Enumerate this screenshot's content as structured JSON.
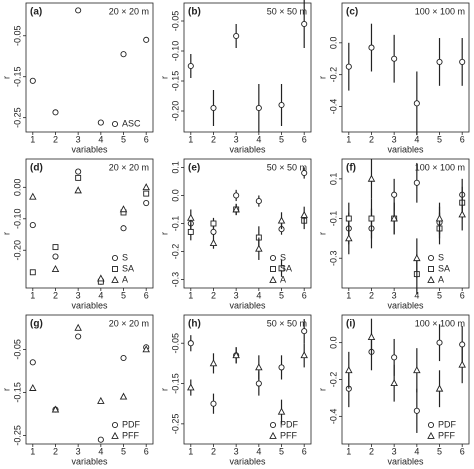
{
  "chart_data": [
    {
      "type": "scatter",
      "panel": "(a)",
      "scale": "20 × 20 m",
      "xlabel": "variables",
      "ylabel": "r",
      "xlim": [
        0.7,
        6.3
      ],
      "xticks": [
        1,
        2,
        3,
        4,
        5,
        6
      ],
      "ylim": [
        -0.285,
        0.03
      ],
      "yticks": [
        -0.05,
        -0.15,
        -0.25
      ],
      "series": [
        {
          "name": "ASC",
          "marker": "circle",
          "color": "#222",
          "x": [
            1,
            2,
            3,
            4,
            5,
            6
          ],
          "values": [
            -0.16,
            -0.237,
            0.012,
            -0.262,
            -0.095,
            -0.06
          ],
          "errors": [
            0.006,
            0.006,
            0.006,
            0.006,
            0.006,
            0.006
          ]
        }
      ]
    },
    {
      "type": "scatter",
      "panel": "(b)",
      "scale": "50 × 50 m",
      "xlabel": "variables",
      "ylabel": "r",
      "xlim": [
        0.7,
        6.3
      ],
      "xticks": [
        1,
        2,
        3,
        4,
        5,
        6
      ],
      "ylim": [
        -0.235,
        -0.02
      ],
      "yticks": [
        -0.05,
        {
          "value": -0.1,
          "label": "-0.10"
        },
        -0.15,
        {
          "value": -0.2,
          "label": "-0.20"
        }
      ],
      "series": [
        {
          "marker": "circle",
          "color": "#222",
          "x": [
            1,
            2,
            3,
            4,
            5,
            6
          ],
          "values": [
            -0.125,
            -0.195,
            -0.075,
            -0.195,
            -0.19,
            -0.055
          ],
          "errors": [
            0.02,
            0.03,
            0.02,
            0.04,
            0.035,
            0.04
          ]
        }
      ]
    },
    {
      "type": "scatter",
      "panel": "(c)",
      "scale": "100 × 100 m",
      "xlabel": "variables",
      "ylabel": "r",
      "xlim": [
        0.7,
        6.3
      ],
      "xticks": [
        1,
        2,
        3,
        4,
        5,
        6
      ],
      "ylim": [
        -0.56,
        0.25
      ],
      "yticks": [
        {
          "value": 0,
          "label": "0.0"
        },
        -0.2,
        -0.4
      ],
      "series": [
        {
          "marker": "circle",
          "color": "#222",
          "x": [
            1,
            2,
            3,
            4,
            5,
            6
          ],
          "values": [
            -0.15,
            -0.03,
            -0.1,
            -0.38,
            -0.12,
            -0.12
          ],
          "errors": [
            0.15,
            0.15,
            0.15,
            0.2,
            0.15,
            0.15
          ]
        }
      ]
    },
    {
      "type": "scatter",
      "panel": "(d)",
      "scale": "20 × 20 m",
      "xlabel": "variables",
      "ylabel": "r",
      "xlim": [
        0.7,
        6.3
      ],
      "xticks": [
        1,
        2,
        3,
        4,
        5,
        6
      ],
      "ylim": [
        -0.32,
        0.09
      ],
      "yticks": [
        {
          "value": 0,
          "label": "0.00"
        },
        {
          "value": -0.1,
          "label": "-0.10"
        },
        {
          "value": -0.2,
          "label": "-0.20"
        }
      ],
      "series": [
        {
          "name": "S",
          "marker": "circle",
          "color": "#222",
          "x": [
            1,
            2,
            3,
            4,
            5,
            6
          ],
          "values": [
            -0.12,
            -0.22,
            0.05,
            -0.3,
            -0.13,
            -0.05
          ],
          "errors": [
            0.005,
            0.005,
            0.005,
            0.005,
            0.005,
            0.005
          ]
        },
        {
          "name": "SA",
          "marker": "square",
          "color": "#222",
          "x": [
            1,
            2,
            3,
            4,
            5,
            6
          ],
          "values": [
            -0.27,
            -0.19,
            0.03,
            -0.3,
            -0.08,
            -0.02
          ],
          "errors": [
            0.005,
            0.005,
            0.005,
            0.005,
            0.005,
            0.005
          ]
        },
        {
          "name": "A",
          "marker": "triangle",
          "color": "#222",
          "x": [
            1,
            2,
            3,
            4,
            5,
            6
          ],
          "values": [
            -0.03,
            -0.26,
            -0.01,
            -0.29,
            -0.07,
            0.0
          ],
          "errors": [
            0.005,
            0.005,
            0.005,
            0.005,
            0.005,
            0.005
          ]
        }
      ]
    },
    {
      "type": "scatter",
      "panel": "(e)",
      "scale": "50 × 50 m",
      "xlabel": "variables",
      "ylabel": "r",
      "xlim": [
        0.7,
        6.3
      ],
      "xticks": [
        1,
        2,
        3,
        4,
        5,
        6
      ],
      "ylim": [
        -0.33,
        0.13
      ],
      "yticks": [
        0.1,
        {
          "value": 0,
          "label": "0.0"
        },
        -0.1,
        -0.2,
        -0.3
      ],
      "series": [
        {
          "name": "S",
          "marker": "circle",
          "color": "#222",
          "x": [
            1,
            2,
            3,
            4,
            5,
            6
          ],
          "values": [
            -0.1,
            -0.13,
            0.0,
            -0.02,
            -0.12,
            0.08
          ],
          "errors": [
            0.02,
            0.02,
            0.02,
            0.02,
            0.02,
            0.02
          ]
        },
        {
          "name": "SA",
          "marker": "square",
          "color": "#222",
          "x": [
            1,
            2,
            3,
            4,
            5,
            6
          ],
          "values": [
            -0.13,
            -0.1,
            -0.05,
            -0.15,
            -0.26,
            -0.09
          ],
          "errors": [
            0.03,
            0.02,
            0.02,
            0.04,
            0.03,
            0.03
          ]
        },
        {
          "name": "A",
          "marker": "triangle",
          "color": "#222",
          "x": [
            1,
            2,
            3,
            4,
            5,
            6
          ],
          "values": [
            -0.08,
            -0.17,
            -0.05,
            -0.19,
            -0.09,
            -0.07
          ],
          "errors": [
            0.03,
            0.02,
            0.02,
            0.04,
            0.03,
            0.03
          ]
        }
      ]
    },
    {
      "type": "scatter",
      "panel": "(f)",
      "scale": "100 × 100 m",
      "xlabel": "variables",
      "ylabel": "r",
      "xlim": [
        0.7,
        6.3
      ],
      "xticks": [
        1,
        2,
        3,
        4,
        5,
        6
      ],
      "ylim": [
        -0.45,
        0.2
      ],
      "yticks": [
        0.1,
        -0.1,
        -0.3
      ],
      "series": [
        {
          "name": "S",
          "marker": "circle",
          "color": "#222",
          "x": [
            1,
            2,
            3,
            4,
            5,
            6
          ],
          "values": [
            -0.15,
            -0.15,
            0.02,
            0.08,
            -0.12,
            0.02
          ],
          "errors": [
            0.08,
            0.1,
            0.08,
            0.1,
            0.08,
            0.08
          ]
        },
        {
          "name": "SA",
          "marker": "square",
          "color": "#222",
          "x": [
            1,
            2,
            3,
            4,
            5,
            6
          ],
          "values": [
            -0.1,
            -0.1,
            -0.1,
            -0.38,
            -0.15,
            -0.02
          ],
          "errors": [
            0.08,
            0.1,
            0.08,
            0.1,
            0.08,
            0.08
          ]
        },
        {
          "name": "A",
          "marker": "triangle",
          "color": "#222",
          "x": [
            1,
            2,
            3,
            4,
            5,
            6
          ],
          "values": [
            -0.2,
            0.1,
            -0.1,
            -0.3,
            -0.1,
            -0.08
          ],
          "errors": [
            0.08,
            0.1,
            0.08,
            0.1,
            0.08,
            0.08
          ]
        }
      ]
    },
    {
      "type": "scatter",
      "panel": "(g)",
      "scale": "20 × 20 m",
      "xlabel": "variables",
      "ylabel": "r",
      "xlim": [
        0.7,
        6.3
      ],
      "xticks": [
        1,
        2,
        3,
        4,
        5,
        6
      ],
      "ylim": [
        -0.27,
        0.03
      ],
      "yticks": [
        -0.05,
        -0.15,
        -0.25
      ],
      "series": [
        {
          "name": "PDF",
          "marker": "circle",
          "color": "#222",
          "x": [
            1,
            2,
            3,
            4,
            5,
            6
          ],
          "values": [
            -0.08,
            -0.19,
            -0.02,
            -0.26,
            -0.07,
            -0.045
          ],
          "errors": [
            0.005,
            0.005,
            0.005,
            0.005,
            0.005,
            0.005
          ]
        },
        {
          "name": "PFF",
          "marker": "triangle",
          "color": "#222",
          "x": [
            1,
            2,
            3,
            4,
            5,
            6
          ],
          "values": [
            -0.14,
            -0.19,
            0.0,
            -0.17,
            -0.16,
            -0.05
          ],
          "errors": [
            0.005,
            0.005,
            0.005,
            0.005,
            0.005,
            0.005
          ]
        }
      ]
    },
    {
      "type": "scatter",
      "panel": "(h)",
      "scale": "50 × 50 m",
      "xlabel": "variables",
      "ylabel": "r",
      "xlim": [
        0.7,
        6.3
      ],
      "xticks": [
        1,
        2,
        3,
        4,
        5,
        6
      ],
      "ylim": [
        -0.3,
        0.02
      ],
      "yticks": [
        -0.05,
        -0.15,
        -0.25
      ],
      "series": [
        {
          "name": "PDF",
          "marker": "circle",
          "color": "#222",
          "x": [
            1,
            2,
            3,
            4,
            5,
            6
          ],
          "values": [
            -0.05,
            -0.2,
            -0.08,
            -0.15,
            -0.11,
            -0.02
          ],
          "errors": [
            0.02,
            0.025,
            0.02,
            0.03,
            0.03,
            0.03
          ]
        },
        {
          "name": "PFF",
          "marker": "triangle",
          "color": "#222",
          "x": [
            1,
            2,
            3,
            4,
            5,
            6
          ],
          "values": [
            -0.16,
            -0.1,
            -0.08,
            -0.11,
            -0.22,
            -0.08
          ],
          "errors": [
            0.02,
            0.025,
            0.02,
            0.03,
            0.03,
            0.03
          ]
        }
      ]
    },
    {
      "type": "scatter",
      "panel": "(i)",
      "scale": "100 × 100 m",
      "xlabel": "variables",
      "ylabel": "r",
      "xlim": [
        0.7,
        6.3
      ],
      "xticks": [
        1,
        2,
        3,
        4,
        5,
        6
      ],
      "ylim": [
        -0.55,
        0.15
      ],
      "yticks": [
        {
          "value": 0,
          "label": "0.0"
        },
        -0.2,
        -0.4
      ],
      "series": [
        {
          "name": "PDF",
          "marker": "circle",
          "color": "#222",
          "x": [
            1,
            2,
            3,
            4,
            5,
            6
          ],
          "values": [
            -0.25,
            -0.05,
            -0.08,
            -0.37,
            0.0,
            -0.01
          ],
          "errors": [
            0.1,
            0.1,
            0.1,
            0.12,
            0.1,
            0.1
          ]
        },
        {
          "name": "PFF",
          "marker": "triangle",
          "color": "#222",
          "x": [
            1,
            2,
            3,
            4,
            5,
            6
          ],
          "values": [
            -0.15,
            0.03,
            -0.22,
            -0.15,
            -0.25,
            -0.12
          ],
          "errors": [
            0.1,
            0.1,
            0.1,
            0.12,
            0.1,
            0.1
          ]
        }
      ]
    }
  ]
}
